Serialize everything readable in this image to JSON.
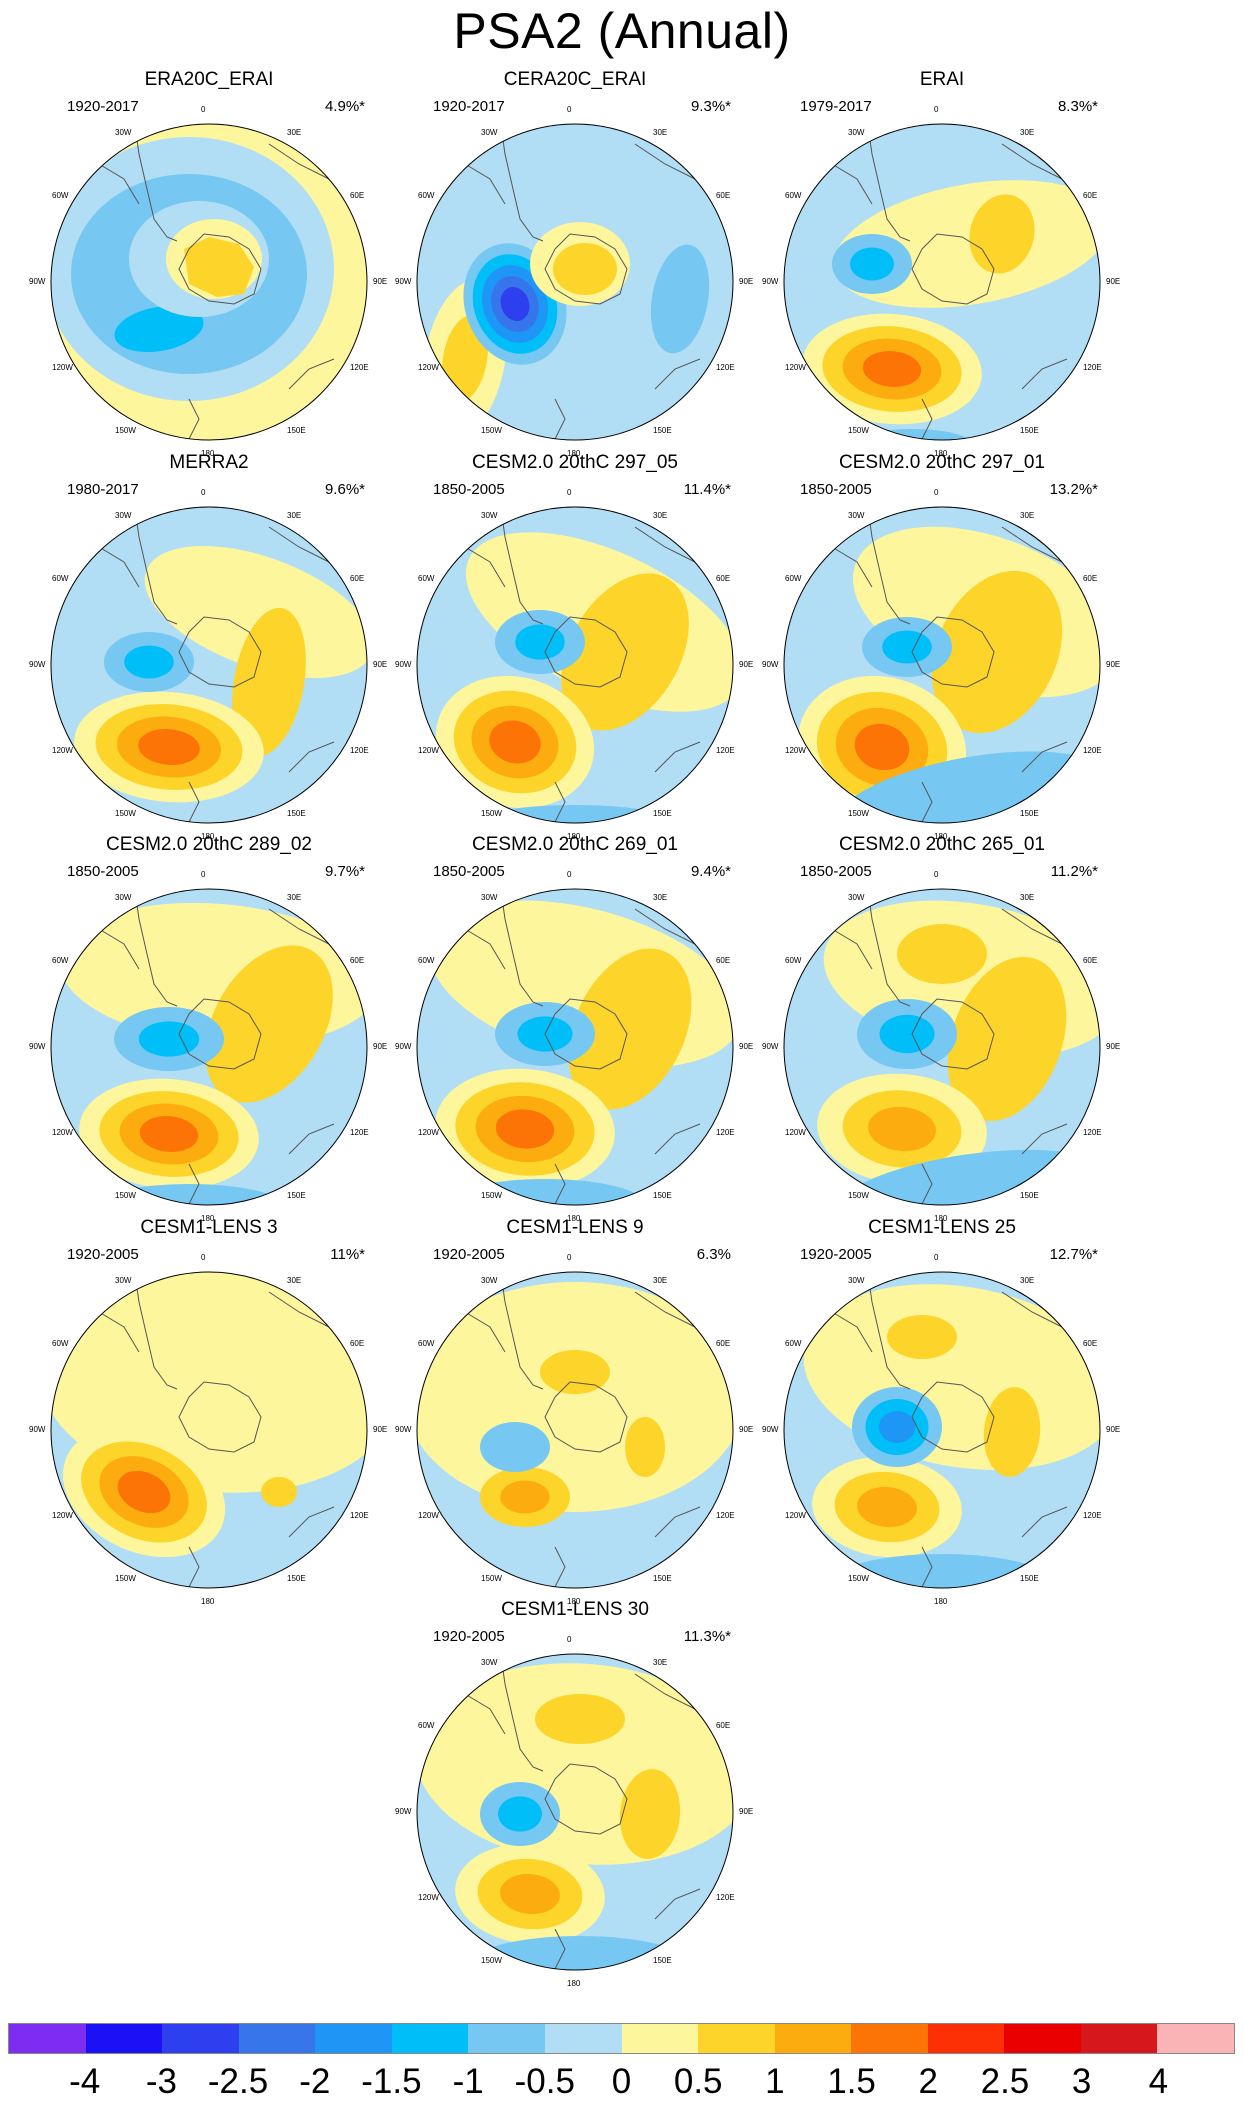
{
  "figure": {
    "title": "PSA2 (Annual)"
  },
  "lon_labels": [
    "0",
    "30E",
    "60E",
    "90E",
    "120E",
    "150E",
    "180",
    "150W",
    "120W",
    "90W",
    "60W",
    "30W"
  ],
  "panels": [
    {
      "title": "ERA20C_ERAI",
      "years": "1920-2017",
      "pct": "4.9%*",
      "pattern": "era20c"
    },
    {
      "title": "CERA20C_ERAI",
      "years": "1920-2017",
      "pct": "9.3%*",
      "pattern": "cera20c"
    },
    {
      "title": "ERAI",
      "years": "1979-2017",
      "pct": "8.3%*",
      "pattern": "erai"
    },
    {
      "title": "MERRA2",
      "years": "1980-2017",
      "pct": "9.6%*",
      "pattern": "merra2"
    },
    {
      "title": "CESM2.0 20thC 297_05",
      "years": "1850-2005",
      "pct": "11.4%*",
      "pattern": "cesm2a"
    },
    {
      "title": "CESM2.0 20thC 297_01",
      "years": "1850-2005",
      "pct": "13.2%*",
      "pattern": "cesm2b"
    },
    {
      "title": "CESM2.0 20thC 289_02",
      "years": "1850-2005",
      "pct": "9.7%*",
      "pattern": "cesm2c"
    },
    {
      "title": "CESM2.0 20thC 269_01",
      "years": "1850-2005",
      "pct": "9.4%*",
      "pattern": "cesm2d"
    },
    {
      "title": "CESM2.0 20thC 265_01",
      "years": "1850-2005",
      "pct": "11.2%*",
      "pattern": "cesm2e"
    },
    {
      "title": "CESM1-LENS 3",
      "years": "1920-2005",
      "pct": "11%*",
      "pattern": "lens3"
    },
    {
      "title": "CESM1-LENS 9",
      "years": "1920-2005",
      "pct": "6.3%",
      "pattern": "lens9"
    },
    {
      "title": "CESM1-LENS 25",
      "years": "1920-2005",
      "pct": "12.7%*",
      "pattern": "lens25"
    },
    {
      "title": "CESM1-LENS 30",
      "years": "1920-2005",
      "pct": "11.3%*",
      "pattern": "lens30"
    }
  ],
  "colorbar": {
    "colors": [
      "#7f2cf2",
      "#1a12f5",
      "#2e3ff0",
      "#3775eb",
      "#1d96f5",
      "#00bef8",
      "#77c7f3",
      "#b1def5",
      "#fdf69c",
      "#fdd52a",
      "#fdac0f",
      "#fc7405",
      "#fc3004",
      "#ea0000",
      "#d4181b",
      "#fbb4b5"
    ],
    "labels": [
      "-4",
      "-3",
      "-2.5",
      "-2",
      "-1.5",
      "-1",
      "-0.5",
      "0",
      "0.5",
      "1",
      "1.5",
      "2",
      "2.5",
      "3",
      "4"
    ]
  }
}
